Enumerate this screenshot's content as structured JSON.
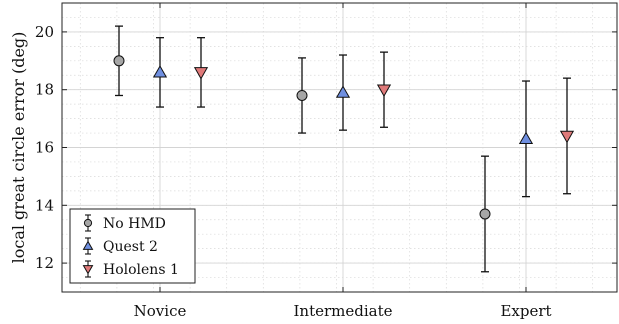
{
  "chart_data": {
    "type": "scatter",
    "style": "errorbar",
    "categories": [
      "Novice",
      "Intermediate",
      "Expert"
    ],
    "ylabel": "local great circle error (deg)",
    "xlabel": "",
    "ylim": [
      11,
      21
    ],
    "yticks": [
      12,
      14,
      16,
      18,
      20
    ],
    "grid": true,
    "minor_grid": true,
    "legend_position": "bottom-left",
    "series": [
      {
        "name": "No HMD",
        "marker": "circle",
        "color": "#a6a6a6",
        "values": [
          19.0,
          17.8,
          13.7
        ],
        "lower": [
          17.8,
          16.5,
          11.7
        ],
        "upper": [
          20.2,
          19.1,
          15.7
        ]
      },
      {
        "name": "Quest 2",
        "marker": "triangle-up",
        "color": "#6f8fe0",
        "values": [
          18.6,
          17.9,
          16.3
        ],
        "lower": [
          17.4,
          16.6,
          14.3
        ],
        "upper": [
          19.8,
          19.2,
          18.3
        ]
      },
      {
        "name": "Hololens 1",
        "marker": "triangle-down",
        "color": "#e07a7a",
        "values": [
          18.6,
          18.0,
          16.4
        ],
        "lower": [
          17.4,
          16.7,
          14.4
        ],
        "upper": [
          19.8,
          19.3,
          18.4
        ]
      }
    ]
  }
}
